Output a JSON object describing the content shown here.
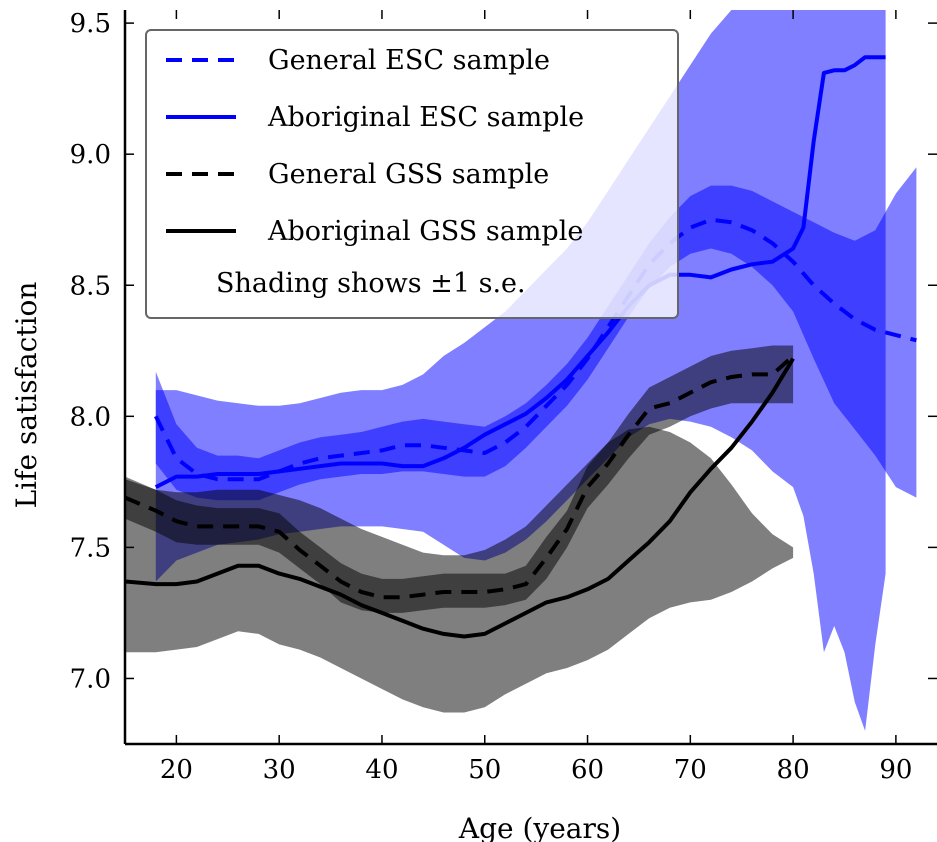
{
  "chart_data": {
    "type": "line",
    "title": "",
    "xlabel": "Age (years)",
    "ylabel": "Life satisfaction",
    "xlim": [
      15,
      94
    ],
    "ylim": [
      6.75,
      9.55
    ],
    "xticks": [
      20,
      30,
      40,
      50,
      60,
      70,
      80,
      90
    ],
    "yticks": [
      7.0,
      7.5,
      8.0,
      8.5,
      9.0,
      9.5
    ],
    "xtick_labels": [
      "20",
      "30",
      "40",
      "50",
      "60",
      "70",
      "80",
      "90"
    ],
    "ytick_labels": [
      "7.0",
      "7.5",
      "8.0",
      "8.5",
      "9.0",
      "9.5"
    ],
    "grid": false,
    "legend_position": "top-left",
    "legend_note": "Shading shows ±1 s.e.",
    "series": [
      {
        "name": "General ESC sample",
        "color": "#0000ff",
        "style": "dashed",
        "shade_opacity": 0.5,
        "x": [
          18,
          20,
          22,
          24,
          26,
          28,
          30,
          32,
          34,
          36,
          38,
          40,
          42,
          44,
          46,
          48,
          50,
          52,
          54,
          56,
          58,
          60,
          62,
          64,
          66,
          68,
          70,
          72,
          74,
          76,
          78,
          80,
          82,
          84,
          86,
          88,
          90,
          92
        ],
        "y": [
          8.0,
          7.84,
          7.78,
          7.76,
          7.76,
          7.76,
          7.79,
          7.82,
          7.84,
          7.85,
          7.86,
          7.87,
          7.89,
          7.89,
          7.88,
          7.87,
          7.86,
          7.9,
          7.96,
          8.04,
          8.12,
          8.22,
          8.34,
          8.46,
          8.58,
          8.66,
          8.72,
          8.75,
          8.74,
          8.71,
          8.66,
          8.59,
          8.5,
          8.43,
          8.37,
          8.33,
          8.31,
          8.29
        ],
        "lower": [
          7.82,
          7.72,
          7.69,
          7.68,
          7.68,
          7.68,
          7.71,
          7.74,
          7.76,
          7.77,
          7.78,
          7.78,
          7.79,
          7.79,
          7.78,
          7.77,
          7.77,
          7.81,
          7.88,
          7.96,
          8.04,
          8.14,
          8.26,
          8.38,
          8.49,
          8.57,
          8.62,
          8.64,
          8.62,
          8.57,
          8.5,
          8.4,
          8.22,
          8.05,
          7.95,
          7.85,
          7.73,
          7.69
        ],
        "upper": [
          8.17,
          7.97,
          7.88,
          7.85,
          7.85,
          7.84,
          7.87,
          7.9,
          7.92,
          7.93,
          7.94,
          7.96,
          7.98,
          7.99,
          7.98,
          7.97,
          7.96,
          8.0,
          8.05,
          8.12,
          8.2,
          8.3,
          8.42,
          8.54,
          8.66,
          8.76,
          8.84,
          8.88,
          8.88,
          8.86,
          8.82,
          8.78,
          8.74,
          8.7,
          8.67,
          8.71,
          8.85,
          8.95
        ]
      },
      {
        "name": "Aboriginal ESC sample",
        "color": "#0000ff",
        "style": "solid",
        "shade_opacity": 0.5,
        "x": [
          18,
          20,
          22,
          24,
          26,
          28,
          30,
          32,
          34,
          36,
          38,
          40,
          42,
          44,
          46,
          48,
          50,
          52,
          54,
          56,
          58,
          60,
          62,
          64,
          66,
          68,
          70,
          72,
          74,
          76,
          78,
          80,
          81,
          82,
          83,
          84,
          85,
          86,
          87,
          88,
          89
        ],
        "y": [
          7.73,
          7.77,
          7.77,
          7.78,
          7.78,
          7.78,
          7.79,
          7.8,
          7.81,
          7.82,
          7.82,
          7.82,
          7.81,
          7.81,
          7.84,
          7.88,
          7.93,
          7.97,
          8.01,
          8.07,
          8.14,
          8.23,
          8.32,
          8.42,
          8.5,
          8.54,
          8.54,
          8.53,
          8.56,
          8.58,
          8.59,
          8.64,
          8.72,
          9.05,
          9.31,
          9.32,
          9.32,
          9.34,
          9.37,
          9.37,
          9.37
        ],
        "lower": [
          7.37,
          7.45,
          7.48,
          7.51,
          7.52,
          7.53,
          7.55,
          7.56,
          7.57,
          7.58,
          7.58,
          7.58,
          7.57,
          7.56,
          7.51,
          7.46,
          7.45,
          7.48,
          7.53,
          7.6,
          7.68,
          7.76,
          7.84,
          7.92,
          7.97,
          7.99,
          7.98,
          7.96,
          7.92,
          7.87,
          7.79,
          7.73,
          7.62,
          7.4,
          7.1,
          7.2,
          7.1,
          6.91,
          6.8,
          7.13,
          7.4
        ],
        "upper": [
          8.1,
          8.1,
          8.08,
          8.06,
          8.05,
          8.04,
          8.04,
          8.05,
          8.07,
          8.09,
          8.1,
          8.1,
          8.12,
          8.16,
          8.23,
          8.28,
          8.34,
          8.4,
          8.48,
          8.56,
          8.64,
          8.74,
          8.86,
          8.98,
          9.1,
          9.22,
          9.34,
          9.46,
          9.55,
          9.55,
          9.55,
          9.55,
          9.55,
          9.55,
          9.55,
          9.55,
          9.55,
          9.55,
          9.55,
          9.55,
          9.55
        ]
      },
      {
        "name": "General GSS sample",
        "color": "#000000",
        "style": "dashed",
        "shade_opacity": 0.5,
        "x": [
          15,
          18,
          20,
          22,
          24,
          26,
          28,
          30,
          32,
          34,
          36,
          38,
          40,
          42,
          44,
          46,
          48,
          50,
          52,
          54,
          56,
          58,
          60,
          62,
          64,
          66,
          68,
          70,
          72,
          74,
          76,
          78,
          80
        ],
        "y": [
          7.69,
          7.64,
          7.6,
          7.58,
          7.58,
          7.58,
          7.58,
          7.56,
          7.49,
          7.43,
          7.37,
          7.33,
          7.31,
          7.31,
          7.32,
          7.33,
          7.33,
          7.33,
          7.34,
          7.36,
          7.46,
          7.57,
          7.73,
          7.82,
          7.93,
          8.03,
          8.05,
          8.09,
          8.13,
          8.15,
          8.16,
          8.16,
          8.23
        ],
        "lower": [
          7.61,
          7.56,
          7.52,
          7.51,
          7.51,
          7.51,
          7.51,
          7.48,
          7.42,
          7.36,
          7.29,
          7.26,
          7.25,
          7.25,
          7.26,
          7.27,
          7.27,
          7.27,
          7.28,
          7.3,
          7.38,
          7.5,
          7.65,
          7.74,
          7.84,
          7.93,
          7.96,
          8.0,
          8.03,
          8.05,
          8.05,
          8.05,
          8.05
        ],
        "upper": [
          7.77,
          7.72,
          7.68,
          7.66,
          7.65,
          7.65,
          7.65,
          7.63,
          7.56,
          7.5,
          7.44,
          7.4,
          7.38,
          7.38,
          7.39,
          7.4,
          7.4,
          7.4,
          7.4,
          7.43,
          7.54,
          7.64,
          7.81,
          7.9,
          8.01,
          8.11,
          8.15,
          8.19,
          8.23,
          8.25,
          8.26,
          8.27,
          8.27
        ]
      },
      {
        "name": "Aboriginal GSS sample",
        "color": "#000000",
        "style": "solid",
        "shade_opacity": 0.5,
        "x": [
          15,
          18,
          20,
          22,
          24,
          26,
          28,
          30,
          32,
          34,
          36,
          38,
          40,
          42,
          44,
          46,
          48,
          50,
          52,
          54,
          56,
          58,
          60,
          62,
          64,
          66,
          68,
          70,
          72,
          74,
          76,
          78,
          80
        ],
        "y": [
          7.37,
          7.36,
          7.36,
          7.37,
          7.4,
          7.43,
          7.43,
          7.4,
          7.38,
          7.35,
          7.32,
          7.28,
          7.25,
          7.22,
          7.19,
          7.17,
          7.16,
          7.17,
          7.21,
          7.25,
          7.29,
          7.31,
          7.34,
          7.38,
          7.45,
          7.52,
          7.6,
          7.71,
          7.8,
          7.88,
          7.98,
          8.09,
          8.22
        ],
        "lower": [
          7.1,
          7.1,
          7.11,
          7.12,
          7.15,
          7.18,
          7.17,
          7.13,
          7.11,
          7.08,
          7.04,
          7.0,
          6.96,
          6.92,
          6.89,
          6.87,
          6.87,
          6.89,
          6.94,
          6.98,
          7.02,
          7.04,
          7.07,
          7.11,
          7.17,
          7.23,
          7.27,
          7.29,
          7.3,
          7.33,
          7.37,
          7.42,
          7.46
        ],
        "upper": [
          7.76,
          7.72,
          7.71,
          7.71,
          7.72,
          7.72,
          7.72,
          7.7,
          7.68,
          7.65,
          7.61,
          7.57,
          7.54,
          7.51,
          7.48,
          7.47,
          7.47,
          7.49,
          7.53,
          7.58,
          7.66,
          7.74,
          7.82,
          7.9,
          7.95,
          7.96,
          7.94,
          7.9,
          7.84,
          7.74,
          7.63,
          7.55,
          7.5
        ]
      }
    ]
  }
}
